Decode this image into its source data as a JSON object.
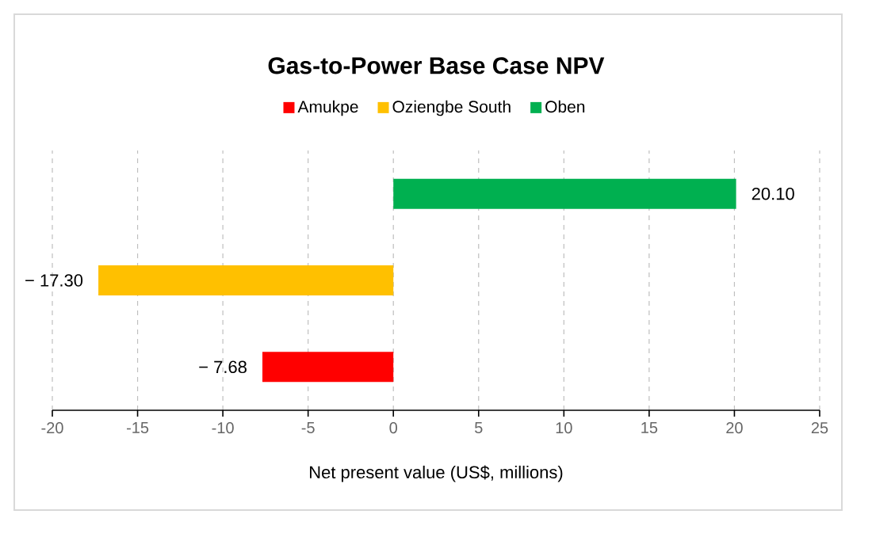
{
  "chart_data": {
    "type": "bar",
    "orientation": "horizontal",
    "title": "Gas-to-Power Base Case NPV",
    "xlabel": "Net present value (US$, millions)",
    "categories": [
      null
    ],
    "series": [
      {
        "name": "Amukpe",
        "color": "#ff0000",
        "values": [
          -7.68
        ],
        "value_labels": [
          "− 7.68"
        ]
      },
      {
        "name": "Oziengbe South",
        "color": "#ffc000",
        "values": [
          -17.3
        ],
        "value_labels": [
          "− 17.30"
        ]
      },
      {
        "name": "Oben",
        "color": "#00b050",
        "values": [
          20.1
        ],
        "value_labels": [
          "20.10"
        ]
      }
    ],
    "xlim": [
      -20,
      25
    ],
    "xticks": [
      -20,
      -15,
      -10,
      -5,
      0,
      5,
      10,
      15,
      20,
      25
    ],
    "grid": "x",
    "legend": "top",
    "tick_labels": "x"
  }
}
